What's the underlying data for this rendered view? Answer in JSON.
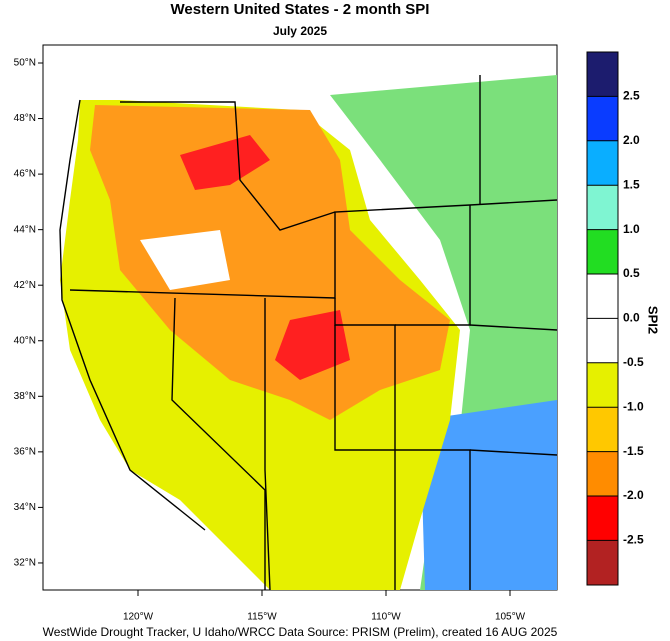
{
  "title": "Western United States - 2 month SPI",
  "subtitle": "July 2025",
  "lat_labels": [
    "50°N",
    "48°N",
    "46°N",
    "44°N",
    "42°N",
    "40°N",
    "38°N",
    "36°N",
    "34°N",
    "32°N"
  ],
  "lon_labels": [
    "120°W",
    "115°W",
    "110°W",
    "105°W"
  ],
  "colorbar": {
    "label": "SPI2",
    "ticks": [
      "2.5",
      "2.0",
      "1.5",
      "1.0",
      "0.5",
      "0.0",
      "-0.5",
      "-1.0",
      "-1.5",
      "-2.0",
      "-2.5"
    ]
  },
  "footer": "WestWide Drought Tracker, U Idaho/WRCC Data Source: PRISM (Prelim), created 16 AUG 2025"
}
